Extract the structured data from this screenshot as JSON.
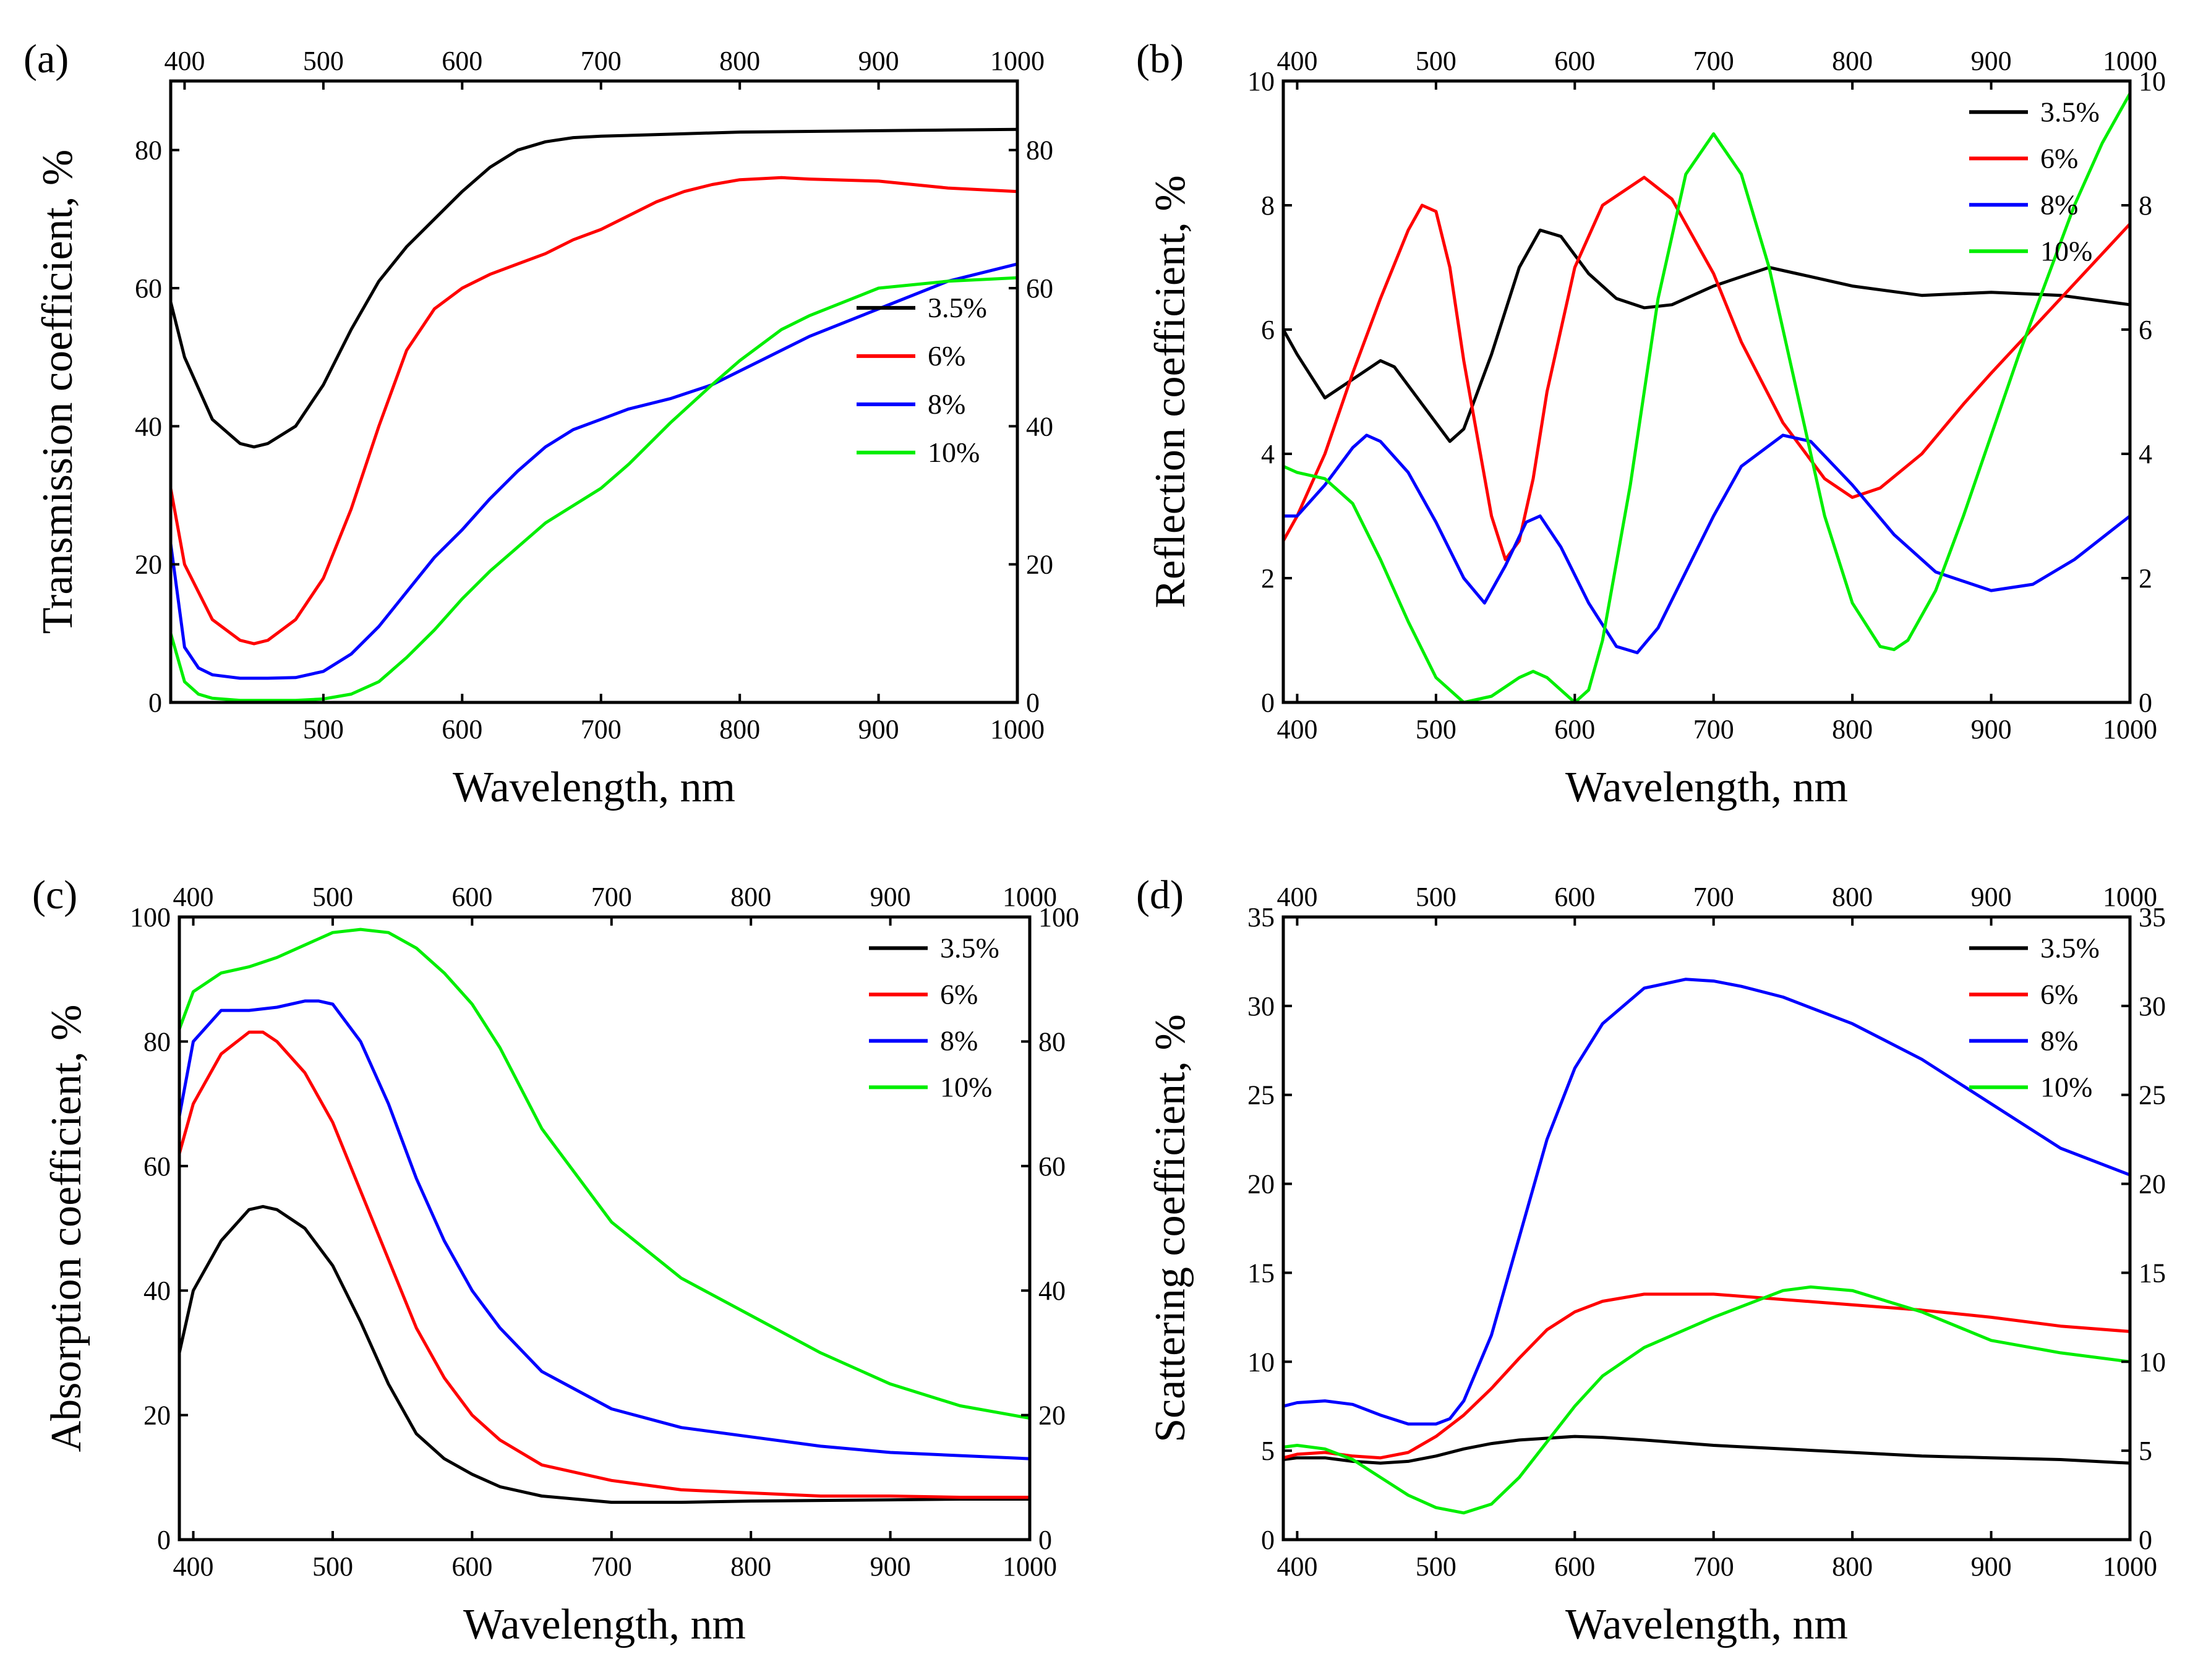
{
  "figure": {
    "series_colors": {
      "3.5%": "#000000",
      "6%": "#ff0000",
      "8%": "#0000ff",
      "10%": "#00ee00"
    }
  },
  "chart_data": [
    {
      "id": "a",
      "panel_label": "(a)",
      "type": "line",
      "xlabel": "Wavelength, nm",
      "ylabel": "Transmission coefficient, %",
      "xlim": [
        390,
        1000
      ],
      "ylim": [
        0,
        90
      ],
      "xticks": [
        500,
        600,
        700,
        800,
        900,
        1000
      ],
      "xticks_top": [
        400,
        500,
        600,
        700,
        800,
        900,
        1000
      ],
      "yticks": [
        0,
        20,
        40,
        60,
        80
      ],
      "legend_position": "right-middle",
      "series": [
        {
          "name": "3.5%",
          "color": "#000000",
          "x": [
            390,
            400,
            420,
            440,
            450,
            460,
            480,
            500,
            520,
            540,
            560,
            580,
            600,
            620,
            640,
            660,
            680,
            700,
            750,
            800,
            850,
            900,
            950,
            1000
          ],
          "y": [
            58,
            50,
            41,
            37.5,
            37,
            37.5,
            40,
            46,
            54,
            61,
            66,
            70,
            74,
            77.5,
            80,
            81.2,
            81.8,
            82,
            82.3,
            82.6,
            82.7,
            82.8,
            82.9,
            83
          ]
        },
        {
          "name": "6%",
          "color": "#ff0000",
          "x": [
            390,
            400,
            420,
            440,
            450,
            460,
            480,
            500,
            520,
            540,
            560,
            580,
            600,
            620,
            640,
            660,
            680,
            700,
            720,
            740,
            760,
            780,
            800,
            830,
            850,
            900,
            950,
            1000
          ],
          "y": [
            31,
            20,
            12,
            9,
            8.5,
            9,
            12,
            18,
            28,
            40,
            51,
            57,
            60,
            62,
            63.5,
            65,
            67,
            68.5,
            70.5,
            72.5,
            74,
            75,
            75.7,
            76,
            75.8,
            75.5,
            74.5,
            74
          ]
        },
        {
          "name": "8%",
          "color": "#0000ff",
          "x": [
            390,
            400,
            410,
            420,
            440,
            460,
            480,
            500,
            520,
            540,
            560,
            580,
            600,
            620,
            640,
            660,
            680,
            700,
            720,
            750,
            780,
            800,
            820,
            850,
            900,
            950,
            1000
          ],
          "y": [
            23,
            8,
            5,
            4,
            3.5,
            3.5,
            3.6,
            4.5,
            7,
            11,
            16,
            21,
            25,
            29.5,
            33.5,
            37,
            39.5,
            41,
            42.5,
            44,
            46,
            48,
            50,
            53,
            57,
            61,
            63.5
          ]
        },
        {
          "name": "10%",
          "color": "#00ee00",
          "x": [
            390,
            400,
            410,
            420,
            440,
            460,
            480,
            500,
            520,
            540,
            560,
            580,
            600,
            620,
            640,
            660,
            680,
            700,
            720,
            750,
            780,
            800,
            830,
            850,
            900,
            950,
            1000
          ],
          "y": [
            10,
            3,
            1.2,
            0.6,
            0.3,
            0.3,
            0.3,
            0.5,
            1.2,
            3,
            6.5,
            10.5,
            15,
            19,
            22.5,
            26,
            28.5,
            31,
            34.5,
            40.5,
            46,
            49.5,
            54,
            56,
            60,
            61,
            61.5
          ]
        }
      ]
    },
    {
      "id": "b",
      "panel_label": "(b)",
      "type": "line",
      "xlabel": "Wavelength, nm",
      "ylabel": "Reflection coefficient, %",
      "xlim": [
        390,
        1000
      ],
      "ylim": [
        0,
        10
      ],
      "xticks": [
        400,
        500,
        600,
        700,
        800,
        900,
        1000
      ],
      "xticks_top": [
        400,
        500,
        600,
        700,
        800,
        900,
        1000
      ],
      "yticks": [
        0,
        2,
        4,
        6,
        8,
        10
      ],
      "legend_position": "top-right",
      "series": [
        {
          "name": "3.5%",
          "color": "#000000",
          "x": [
            390,
            400,
            420,
            440,
            460,
            470,
            490,
            510,
            520,
            540,
            560,
            575,
            590,
            610,
            630,
            650,
            670,
            700,
            740,
            760,
            800,
            850,
            900,
            950,
            1000
          ],
          "y": [
            6.0,
            5.6,
            4.9,
            5.2,
            5.5,
            5.4,
            4.8,
            4.2,
            4.4,
            5.6,
            7.0,
            7.6,
            7.5,
            6.9,
            6.5,
            6.35,
            6.4,
            6.7,
            7.0,
            6.9,
            6.7,
            6.55,
            6.6,
            6.55,
            6.4
          ]
        },
        {
          "name": "6%",
          "color": "#ff0000",
          "x": [
            390,
            400,
            420,
            440,
            460,
            480,
            490,
            500,
            510,
            520,
            540,
            550,
            560,
            570,
            580,
            600,
            620,
            650,
            670,
            700,
            720,
            750,
            780,
            800,
            820,
            850,
            880,
            900,
            950,
            1000
          ],
          "y": [
            2.6,
            3.0,
            4.0,
            5.3,
            6.5,
            7.6,
            8.0,
            7.9,
            7.0,
            5.5,
            3.0,
            2.3,
            2.6,
            3.6,
            5.0,
            7.0,
            8.0,
            8.45,
            8.1,
            6.9,
            5.8,
            4.5,
            3.6,
            3.3,
            3.45,
            4.0,
            4.8,
            5.3,
            6.5,
            7.7
          ]
        },
        {
          "name": "8%",
          "color": "#0000ff",
          "x": [
            390,
            400,
            420,
            440,
            450,
            460,
            480,
            500,
            520,
            535,
            550,
            565,
            575,
            590,
            610,
            630,
            645,
            660,
            680,
            700,
            720,
            750,
            770,
            800,
            830,
            860,
            900,
            930,
            960,
            1000
          ],
          "y": [
            3.0,
            3.0,
            3.5,
            4.1,
            4.3,
            4.2,
            3.7,
            2.9,
            2.0,
            1.6,
            2.2,
            2.9,
            3.0,
            2.5,
            1.6,
            0.9,
            0.8,
            1.2,
            2.1,
            3.0,
            3.8,
            4.3,
            4.2,
            3.5,
            2.7,
            2.1,
            1.8,
            1.9,
            2.3,
            3.0
          ]
        },
        {
          "name": "10%",
          "color": "#00ee00",
          "x": [
            390,
            400,
            420,
            440,
            460,
            480,
            500,
            520,
            540,
            560,
            570,
            580,
            600,
            610,
            620,
            640,
            660,
            680,
            700,
            720,
            740,
            760,
            780,
            800,
            820,
            830,
            840,
            860,
            880,
            900,
            920,
            940,
            960,
            980,
            1000
          ],
          "y": [
            3.8,
            3.7,
            3.6,
            3.2,
            2.3,
            1.3,
            0.4,
            0.0,
            0.1,
            0.4,
            0.5,
            0.4,
            0.0,
            0.2,
            1.0,
            3.5,
            6.5,
            8.5,
            9.15,
            8.5,
            7.0,
            5.0,
            3.0,
            1.6,
            0.9,
            0.85,
            1.0,
            1.8,
            3.0,
            4.3,
            5.6,
            6.8,
            8.0,
            9.0,
            9.8
          ]
        }
      ]
    },
    {
      "id": "c",
      "panel_label": "(c)",
      "type": "line",
      "xlabel": "Wavelength, nm",
      "ylabel": "Absorption coefficient, %",
      "xlim": [
        390,
        1000
      ],
      "ylim": [
        0,
        100
      ],
      "xticks": [
        400,
        500,
        600,
        700,
        800,
        900,
        1000
      ],
      "xticks_top": [
        400,
        500,
        600,
        700,
        800,
        900,
        1000
      ],
      "yticks": [
        0,
        20,
        40,
        60,
        80,
        100
      ],
      "legend_position": "top-right",
      "series": [
        {
          "name": "3.5%",
          "color": "#000000",
          "x": [
            390,
            400,
            420,
            440,
            450,
            460,
            480,
            500,
            520,
            540,
            560,
            580,
            600,
            620,
            650,
            700,
            750,
            800,
            850,
            900,
            950,
            1000
          ],
          "y": [
            30,
            40,
            48,
            53,
            53.5,
            53,
            50,
            44,
            35,
            25,
            17,
            13,
            10.5,
            8.5,
            7,
            6,
            6,
            6.2,
            6.3,
            6.4,
            6.5,
            6.5
          ]
        },
        {
          "name": "6%",
          "color": "#ff0000",
          "x": [
            390,
            400,
            420,
            440,
            450,
            460,
            480,
            500,
            520,
            540,
            560,
            580,
            600,
            620,
            650,
            700,
            750,
            800,
            850,
            900,
            950,
            1000
          ],
          "y": [
            62,
            70,
            78,
            81.5,
            81.5,
            80,
            75,
            67,
            56,
            45,
            34,
            26,
            20,
            16,
            12,
            9.5,
            8,
            7.5,
            7,
            7,
            6.8,
            6.8
          ]
        },
        {
          "name": "8%",
          "color": "#0000ff",
          "x": [
            390,
            400,
            420,
            440,
            460,
            480,
            490,
            500,
            520,
            540,
            560,
            580,
            600,
            620,
            650,
            700,
            750,
            800,
            850,
            900,
            950,
            1000
          ],
          "y": [
            68,
            80,
            85,
            85,
            85.5,
            86.5,
            86.5,
            86,
            80,
            70,
            58,
            48,
            40,
            34,
            27,
            21,
            18,
            16.5,
            15,
            14,
            13.5,
            13
          ]
        },
        {
          "name": "10%",
          "color": "#00ee00",
          "x": [
            390,
            400,
            420,
            440,
            460,
            480,
            500,
            520,
            540,
            560,
            580,
            600,
            620,
            650,
            700,
            750,
            800,
            850,
            900,
            950,
            1000
          ],
          "y": [
            82,
            88,
            91,
            92,
            93.5,
            95.5,
            97.5,
            98,
            97.5,
            95,
            91,
            86,
            79,
            66,
            51,
            42,
            36,
            30,
            25,
            21.5,
            19.5
          ]
        }
      ]
    },
    {
      "id": "d",
      "panel_label": "(d)",
      "type": "line",
      "xlabel": "Wavelength, nm",
      "ylabel": "Scattering coefficient, %",
      "xlim": [
        390,
        1000
      ],
      "ylim": [
        0,
        35
      ],
      "xticks": [
        400,
        500,
        600,
        700,
        800,
        900,
        1000
      ],
      "xticks_top": [
        400,
        500,
        600,
        700,
        800,
        900,
        1000
      ],
      "yticks": [
        0,
        5,
        10,
        15,
        20,
        25,
        30,
        35
      ],
      "legend_position": "top-right",
      "series": [
        {
          "name": "3.5%",
          "color": "#000000",
          "x": [
            390,
            400,
            420,
            440,
            460,
            480,
            500,
            520,
            540,
            560,
            580,
            600,
            620,
            650,
            700,
            750,
            800,
            850,
            900,
            950,
            1000
          ],
          "y": [
            4.5,
            4.6,
            4.6,
            4.4,
            4.3,
            4.4,
            4.7,
            5.1,
            5.4,
            5.6,
            5.7,
            5.8,
            5.75,
            5.6,
            5.3,
            5.1,
            4.9,
            4.7,
            4.6,
            4.5,
            4.3
          ]
        },
        {
          "name": "6%",
          "color": "#ff0000",
          "x": [
            390,
            400,
            420,
            440,
            460,
            480,
            500,
            520,
            540,
            560,
            580,
            600,
            620,
            650,
            700,
            750,
            800,
            850,
            900,
            950,
            1000
          ],
          "y": [
            4.6,
            4.8,
            4.9,
            4.7,
            4.6,
            4.9,
            5.8,
            7.0,
            8.5,
            10.2,
            11.8,
            12.8,
            13.4,
            13.8,
            13.8,
            13.5,
            13.2,
            12.9,
            12.5,
            12.0,
            11.7
          ]
        },
        {
          "name": "8%",
          "color": "#0000ff",
          "x": [
            390,
            400,
            420,
            440,
            460,
            480,
            500,
            510,
            520,
            540,
            560,
            580,
            600,
            620,
            650,
            680,
            700,
            720,
            750,
            800,
            850,
            900,
            950,
            1000
          ],
          "y": [
            7.5,
            7.7,
            7.8,
            7.6,
            7.0,
            6.5,
            6.5,
            6.8,
            7.8,
            11.5,
            17,
            22.5,
            26.5,
            29,
            31,
            31.5,
            31.4,
            31.1,
            30.5,
            29,
            27,
            24.5,
            22,
            20.5
          ]
        },
        {
          "name": "10%",
          "color": "#00ee00",
          "x": [
            390,
            400,
            420,
            440,
            460,
            480,
            500,
            520,
            540,
            560,
            580,
            600,
            620,
            650,
            700,
            750,
            770,
            800,
            850,
            900,
            950,
            1000
          ],
          "y": [
            5.2,
            5.3,
            5.1,
            4.5,
            3.5,
            2.5,
            1.8,
            1.5,
            2.0,
            3.5,
            5.5,
            7.5,
            9.2,
            10.8,
            12.5,
            14.0,
            14.2,
            14.0,
            12.8,
            11.2,
            10.5,
            10.0
          ]
        }
      ]
    }
  ]
}
